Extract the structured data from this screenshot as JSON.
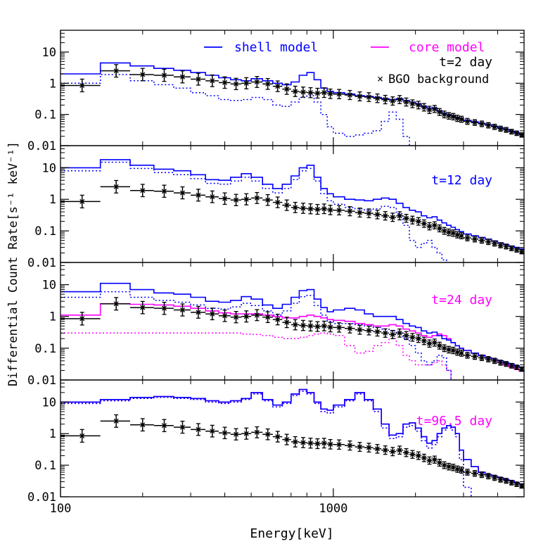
{
  "colors": {
    "shell": "#0000ff",
    "core": "#ff00ff",
    "background": "#000000",
    "frame": "#000000"
  },
  "chart_data": {
    "type": "line",
    "xlabel": "Energy[keV]",
    "ylabel": "Differential Count Rate[s⁻¹ keV⁻¹]",
    "x_scale": "log",
    "y_scale": "log",
    "xlim": [
      100,
      5000
    ],
    "ylim": [
      0.01,
      50
    ],
    "x_ticklabels": [
      "100",
      "1000"
    ],
    "y_ticklabels": [
      "0.01",
      "0.1",
      "1",
      "10"
    ],
    "legend": {
      "shell": "shell model",
      "core": "core model",
      "background": "BGO background",
      "background_marker": "×"
    },
    "bins": [
      100,
      140,
      180,
      220,
      260,
      300,
      340,
      380,
      420,
      460,
      500,
      550,
      600,
      650,
      700,
      750,
      800,
      850,
      900,
      950,
      1000,
      1100,
      1200,
      1300,
      1400,
      1500,
      1600,
      1700,
      1800,
      1900,
      2000,
      2100,
      2200,
      2300,
      2400,
      2500,
      2600,
      2700,
      2800,
      2900,
      3000,
      3200,
      3400,
      3600,
      3800,
      4000,
      4200,
      4400,
      4600,
      4800,
      5000
    ],
    "bgo": {
      "x": [
        120,
        160,
        200,
        240,
        280,
        320,
        360,
        400,
        440,
        480,
        525,
        575,
        625,
        675,
        725,
        775,
        825,
        875,
        925,
        975,
        1050,
        1150,
        1250,
        1350,
        1450,
        1550,
        1650,
        1750,
        1850,
        1950,
        2050,
        2150,
        2250,
        2350,
        2450,
        2550,
        2650,
        2750,
        2850,
        2950,
        3100,
        3300,
        3500,
        3700,
        3900,
        4100,
        4300,
        4500,
        4700,
        4900
      ],
      "y": [
        0.85,
        2.5,
        1.9,
        1.8,
        1.6,
        1.35,
        1.2,
        1.05,
        0.95,
        1.0,
        1.1,
        0.95,
        0.8,
        0.65,
        0.55,
        0.52,
        0.5,
        0.48,
        0.5,
        0.46,
        0.45,
        0.42,
        0.38,
        0.36,
        0.33,
        0.3,
        0.27,
        0.3,
        0.25,
        0.22,
        0.2,
        0.17,
        0.14,
        0.15,
        0.12,
        0.1,
        0.09,
        0.085,
        0.075,
        0.07,
        0.06,
        0.055,
        0.05,
        0.045,
        0.04,
        0.035,
        0.032,
        0.028,
        0.025,
        0.022
      ]
    },
    "panels": [
      {
        "label": "t=2 day",
        "label_color": "#000000",
        "shell_total": [
          2.0,
          4.5,
          3.6,
          3.0,
          2.6,
          2.2,
          1.8,
          1.5,
          1.3,
          1.2,
          1.4,
          1.2,
          1.0,
          0.9,
          1.1,
          1.8,
          2.2,
          1.3,
          0.7,
          0.55,
          0.5,
          0.45,
          0.4,
          0.38,
          0.35,
          0.32,
          0.3,
          0.32,
          0.28,
          0.25,
          0.22,
          0.18,
          0.16,
          0.16,
          0.13,
          0.11,
          0.1,
          0.09,
          0.08,
          0.075,
          0.065,
          0.058,
          0.052,
          0.047,
          0.042,
          0.037,
          0.033,
          0.029,
          0.026,
          0.023
        ],
        "shell_line": [
          1.0,
          1.9,
          1.2,
          0.9,
          0.7,
          0.5,
          0.4,
          0.3,
          0.28,
          0.3,
          0.35,
          0.3,
          0.2,
          0.18,
          0.25,
          0.35,
          0.4,
          0.25,
          0.1,
          0.04,
          0.025,
          0.02,
          0.022,
          0.025,
          0.03,
          0.06,
          0.12,
          0.07,
          0.02,
          0.01,
          0.008,
          0.006,
          0.005,
          0.005,
          0.004,
          0.004,
          0.004,
          0.004,
          0.004,
          0.004,
          0.004,
          0.004,
          0.004,
          0.004,
          0.004,
          0.004,
          0.004,
          0.004,
          0.004,
          0.004
        ]
      },
      {
        "label": "t=12 day",
        "label_color": "#0000ff",
        "shell_total": [
          10.0,
          18.0,
          12.0,
          9.0,
          8.0,
          6.0,
          4.2,
          4.0,
          5.0,
          6.5,
          5.0,
          3.0,
          2.2,
          3.0,
          5.5,
          10.0,
          12.0,
          5.0,
          2.2,
          1.5,
          1.2,
          1.0,
          0.95,
          0.9,
          1.0,
          1.1,
          1.0,
          0.75,
          0.55,
          0.45,
          0.4,
          0.3,
          0.26,
          0.28,
          0.22,
          0.18,
          0.15,
          0.13,
          0.11,
          0.095,
          0.08,
          0.07,
          0.062,
          0.055,
          0.048,
          0.042,
          0.037,
          0.033,
          0.03,
          0.027
        ],
        "shell_line": [
          8.0,
          15.0,
          9.5,
          7.0,
          6.0,
          4.5,
          3.2,
          3.0,
          3.8,
          5.0,
          3.8,
          2.2,
          1.6,
          2.2,
          4.2,
          8.0,
          9.5,
          3.8,
          1.5,
          0.9,
          0.7,
          0.55,
          0.5,
          0.45,
          0.5,
          0.6,
          0.55,
          0.35,
          0.15,
          0.05,
          0.03,
          0.04,
          0.05,
          0.03,
          0.02,
          0.012,
          0.008,
          0.006,
          0.006,
          0.006,
          0.006,
          0.006,
          0.006,
          0.006,
          0.006,
          0.006,
          0.006,
          0.006,
          0.006,
          0.006
        ]
      },
      {
        "label": "t=24 day",
        "label_color": "#ff00ff",
        "shell_total": [
          6.0,
          11.0,
          7.0,
          5.5,
          5.0,
          4.0,
          3.0,
          2.8,
          3.2,
          4.2,
          3.5,
          2.3,
          1.8,
          2.4,
          4.0,
          6.5,
          7.0,
          3.5,
          1.9,
          1.4,
          1.6,
          1.8,
          1.6,
          1.2,
          1.0,
          1.0,
          1.0,
          0.8,
          0.6,
          0.5,
          0.45,
          0.35,
          0.3,
          0.32,
          0.25,
          0.2,
          0.18,
          0.15,
          0.12,
          0.1,
          0.085,
          0.07,
          0.06,
          0.05,
          0.045,
          0.04,
          0.035,
          0.032,
          0.028,
          0.025
        ],
        "shell_line": [
          4.0,
          6.0,
          4.0,
          3.2,
          2.8,
          2.3,
          1.8,
          1.7,
          2.0,
          2.6,
          2.2,
          1.5,
          1.1,
          1.5,
          2.6,
          4.2,
          4.6,
          2.2,
          1.1,
          0.7,
          0.6,
          0.6,
          0.55,
          0.5,
          0.45,
          0.4,
          0.35,
          0.3,
          0.2,
          0.12,
          0.07,
          0.04,
          0.03,
          0.04,
          0.06,
          0.05,
          0.02,
          0.008,
          0.005,
          0.005,
          0.005,
          0.005,
          0.005,
          0.005,
          0.005,
          0.005,
          0.005,
          0.005,
          0.005,
          0.005
        ],
        "core_total": [
          1.1,
          2.5,
          2.4,
          2.3,
          2.1,
          1.8,
          1.5,
          1.3,
          1.2,
          1.2,
          1.2,
          1.1,
          1.0,
          0.9,
          0.9,
          1.0,
          1.1,
          1.0,
          0.9,
          0.8,
          0.75,
          0.7,
          0.6,
          0.55,
          0.5,
          0.5,
          0.55,
          0.5,
          0.4,
          0.35,
          0.3,
          0.25,
          0.22,
          0.25,
          0.28,
          0.25,
          0.2,
          0.15,
          0.12,
          0.1,
          0.085,
          0.07,
          0.06,
          0.05,
          0.04,
          0.035,
          0.03,
          0.026,
          0.022,
          0.019
        ],
        "core_line": [
          0.3,
          0.3,
          0.3,
          0.3,
          0.3,
          0.3,
          0.3,
          0.3,
          0.3,
          0.28,
          0.27,
          0.25,
          0.22,
          0.2,
          0.2,
          0.22,
          0.25,
          0.28,
          0.3,
          0.28,
          0.25,
          0.12,
          0.07,
          0.08,
          0.12,
          0.15,
          0.2,
          0.12,
          0.06,
          0.04,
          0.03,
          0.03,
          0.03,
          0.035,
          0.04,
          0.03,
          0.02,
          0.01,
          0.005,
          0.005,
          0.005,
          0.005,
          0.005,
          0.005,
          0.005,
          0.005,
          0.005,
          0.005,
          0.005,
          0.005
        ]
      },
      {
        "label": "t=96.5 day",
        "label_color": "#ff00ff",
        "shell_total": [
          10.0,
          12.0,
          14.0,
          15.0,
          14.0,
          13.0,
          11.0,
          10.0,
          11.0,
          13.0,
          20.0,
          12.0,
          8.0,
          10.0,
          18.0,
          25.0,
          20.0,
          10.0,
          6.0,
          5.5,
          8.0,
          12.0,
          20.0,
          12.0,
          6.0,
          2.0,
          0.9,
          1.0,
          2.0,
          2.2,
          1.5,
          0.8,
          0.5,
          0.6,
          1.0,
          1.5,
          1.8,
          1.6,
          1.0,
          0.3,
          0.15,
          0.09,
          0.06,
          0.05,
          0.045,
          0.04,
          0.035,
          0.032,
          0.028,
          0.025
        ],
        "shell_line": [
          9.0,
          11.0,
          13.0,
          14.0,
          13.0,
          12.0,
          10.0,
          9.0,
          10.0,
          12.0,
          18.0,
          11.0,
          7.0,
          9.0,
          16.0,
          22.0,
          18.0,
          9.0,
          5.0,
          4.5,
          7.0,
          11.0,
          18.0,
          11.0,
          5.0,
          1.5,
          0.7,
          0.8,
          1.6,
          1.8,
          1.2,
          0.6,
          0.35,
          0.45,
          0.8,
          1.3,
          1.5,
          1.3,
          0.8,
          0.15,
          0.02,
          0.008,
          0.005,
          0.005,
          0.005,
          0.005,
          0.005,
          0.005,
          0.005,
          0.005
        ],
        "core_total": [
          10.0,
          12.0,
          14.0,
          15.0,
          14.0,
          13.0,
          11.0,
          10.0,
          11.0,
          13.0,
          20.0,
          12.0,
          8.0,
          10.0,
          18.0,
          25.0,
          20.0,
          10.0,
          6.0,
          5.5,
          8.0,
          12.0,
          20.0,
          12.0,
          6.0,
          2.0,
          0.9,
          1.0,
          2.0,
          2.2,
          1.5,
          0.8,
          0.5,
          0.6,
          1.0,
          1.5,
          1.8,
          1.6,
          1.0,
          0.3,
          0.15,
          0.09,
          0.06,
          0.05,
          0.045,
          0.04,
          0.035,
          0.032,
          0.028,
          0.025
        ],
        "core_line": [
          9.0,
          11.0,
          13.0,
          14.0,
          13.0,
          12.0,
          10.0,
          9.0,
          10.0,
          12.0,
          18.0,
          11.0,
          7.0,
          9.0,
          16.0,
          22.0,
          18.0,
          9.0,
          5.0,
          4.5,
          7.0,
          11.0,
          18.0,
          11.0,
          5.0,
          1.5,
          0.7,
          0.8,
          1.6,
          1.8,
          1.2,
          0.6,
          0.35,
          0.45,
          0.8,
          1.3,
          1.5,
          1.3,
          0.8,
          0.15,
          0.02,
          0.008,
          0.005,
          0.005,
          0.005,
          0.005,
          0.005,
          0.005,
          0.005,
          0.005
        ]
      }
    ]
  }
}
